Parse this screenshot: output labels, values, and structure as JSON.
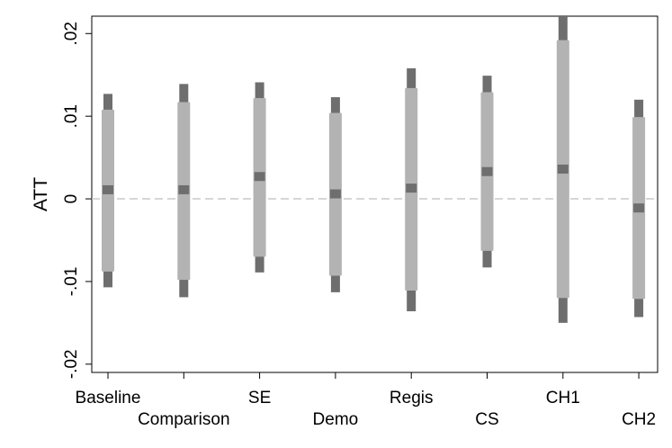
{
  "chart_data": {
    "type": "range",
    "ylabel": "ATT",
    "ylim": [
      -0.021,
      0.0221
    ],
    "yticks": [
      {
        "value": -0.02,
        "label": "-.02"
      },
      {
        "value": -0.01,
        "label": "-.01"
      },
      {
        "value": 0,
        "label": "0"
      },
      {
        "value": 0.01,
        "label": ".01"
      },
      {
        "value": 0.02,
        "label": ".02"
      }
    ],
    "reference_line": 0,
    "grid": false,
    "colors": {
      "outer": "#6e6e6e",
      "inner": "#b3b3b3",
      "point": "#6e6e6e",
      "reference": "#c8c8c8"
    },
    "categories": [
      "Baseline",
      "Comparison",
      "SE",
      "Demo",
      "Regis",
      "CS",
      "CH1",
      "CH2"
    ],
    "label_row": [
      0,
      1,
      0,
      1,
      0,
      1,
      0,
      1
    ],
    "series": [
      {
        "estimate": 0.0011,
        "ci95": [
          -0.0107,
          0.0127
        ],
        "ci90": [
          -0.0088,
          0.0108
        ]
      },
      {
        "estimate": 0.0011,
        "ci95": [
          -0.0119,
          0.0139
        ],
        "ci90": [
          -0.0098,
          0.0117
        ]
      },
      {
        "estimate": 0.0027,
        "ci95": [
          -0.0089,
          0.0141
        ],
        "ci90": [
          -0.007,
          0.0122
        ]
      },
      {
        "estimate": 0.0006,
        "ci95": [
          -0.0113,
          0.0123
        ],
        "ci90": [
          -0.0093,
          0.0104
        ]
      },
      {
        "estimate": 0.0013,
        "ci95": [
          -0.0136,
          0.0158
        ],
        "ci90": [
          -0.0111,
          0.0134
        ]
      },
      {
        "estimate": 0.0033,
        "ci95": [
          -0.0083,
          0.0149
        ],
        "ci90": [
          -0.0063,
          0.0129
        ]
      },
      {
        "estimate": 0.0036,
        "ci95": [
          -0.015,
          0.0222
        ],
        "ci90": [
          -0.012,
          0.0192
        ]
      },
      {
        "estimate": -0.0011,
        "ci95": [
          -0.0143,
          0.012
        ],
        "ci90": [
          -0.0121,
          0.0099
        ]
      }
    ]
  }
}
